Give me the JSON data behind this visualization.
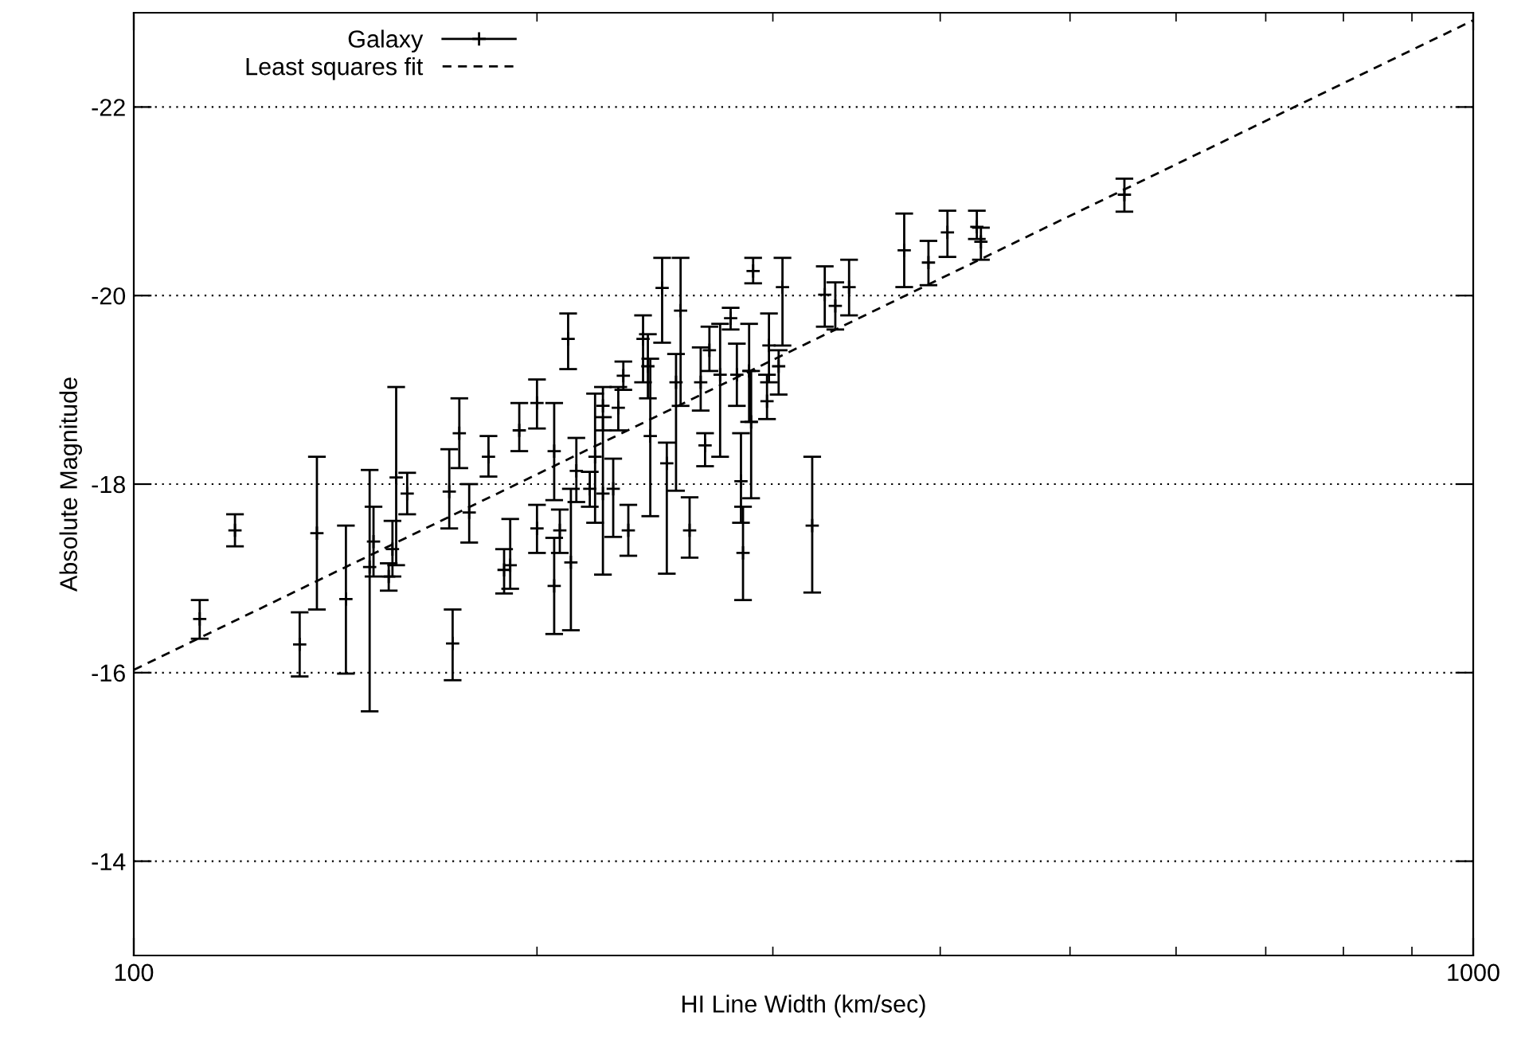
{
  "chart_data": {
    "type": "scatter",
    "xlabel": "HI Line Width (km/sec)",
    "ylabel": "Absolute Magnitude",
    "log": "x",
    "xlim": [
      100,
      1000
    ],
    "xticks": [
      100,
      1000
    ],
    "ylim": [
      -13,
      -23
    ],
    "yticks": [
      -14,
      -16,
      -18,
      -20,
      -22
    ],
    "grid": "y",
    "legend": "top left",
    "marker": "cross",
    "series": [
      {
        "name": "Galaxy",
        "color": "#000000",
        "x": [
          112,
          119,
          133,
          137,
          144,
          150,
          151,
          155,
          156,
          157,
          160,
          172,
          173,
          175,
          178,
          184,
          189,
          191,
          194,
          200,
          200,
          206,
          206,
          208,
          211,
          212,
          214,
          219,
          221,
          224,
          224,
          228,
          230,
          232,
          234,
          240,
          242,
          243,
          248,
          250,
          254,
          256,
          260,
          265,
          267,
          269,
          274,
          279,
          282,
          284,
          285,
          288,
          289,
          290,
          298,
          297,
          303,
          305,
          321,
          328,
          334,
          342,
          376,
          392,
          405,
          426,
          429,
          549
        ],
        "values": [
          -16.57,
          -17.51,
          -16.3,
          -17.48,
          -16.78,
          -17.12,
          -17.39,
          -17.02,
          -17.31,
          -18.07,
          -17.9,
          -17.92,
          -16.31,
          -18.54,
          -17.7,
          -18.29,
          -17.09,
          -17.14,
          -18.57,
          -18.86,
          -17.53,
          -18.35,
          -16.92,
          -17.51,
          -19.54,
          -17.17,
          -18.14,
          -17.95,
          -18.29,
          -18.83,
          -17.9,
          -17.95,
          -18.81,
          -19.15,
          -17.51,
          -19.54,
          -19.25,
          -18.51,
          -20.08,
          -18.22,
          -19.08,
          -19.84,
          -17.51,
          -19.08,
          -18.41,
          -19.42,
          -19.16,
          -19.76,
          -19.16,
          -18.03,
          -17.27,
          -19.2,
          -18.66,
          -20.26,
          -19.47,
          -18.88,
          -19.25,
          -20.09,
          -17.56,
          -20.01,
          -19.89,
          -20.09,
          -20.48,
          -20.35,
          -20.67,
          -20.73,
          -20.57,
          -21.07
        ],
        "errors": [
          [
            -16.77,
            -16.36
          ],
          [
            -17.68,
            -17.34
          ],
          [
            -16.64,
            -15.96
          ],
          [
            -18.29,
            -16.67
          ],
          [
            -17.56,
            -15.99
          ],
          [
            -18.15,
            -15.59
          ],
          [
            -17.76,
            -17.02
          ],
          [
            -17.16,
            -16.87
          ],
          [
            -17.61,
            -17.02
          ],
          [
            -19.03,
            -17.14
          ],
          [
            -18.12,
            -17.68
          ],
          [
            -18.37,
            -17.53
          ],
          [
            -16.67,
            -15.92
          ],
          [
            -18.91,
            -18.17
          ],
          [
            -18.0,
            -17.38
          ],
          [
            -18.51,
            -18.08
          ],
          [
            -17.31,
            -16.84
          ],
          [
            -17.63,
            -16.89
          ],
          [
            -18.86,
            -18.35
          ],
          [
            -19.11,
            -18.59
          ],
          [
            -17.78,
            -17.27
          ],
          [
            -18.86,
            -17.83
          ],
          [
            -17.43,
            -16.41
          ],
          [
            -17.73,
            -17.27
          ],
          [
            -19.81,
            -19.22
          ],
          [
            -17.95,
            -16.45
          ],
          [
            -18.49,
            -17.81
          ],
          [
            -18.13,
            -17.76
          ],
          [
            -18.96,
            -17.59
          ],
          [
            -19.03,
            -18.57
          ],
          [
            -18.71,
            -17.04
          ],
          [
            -18.27,
            -17.44
          ],
          [
            -19.03,
            -18.57
          ],
          [
            -19.3,
            -19.0
          ],
          [
            -17.78,
            -17.24
          ],
          [
            -19.79,
            -19.08
          ],
          [
            -19.59,
            -18.91
          ],
          [
            -19.33,
            -17.66
          ],
          [
            -20.4,
            -19.5
          ],
          [
            -18.44,
            -17.05
          ],
          [
            -19.38,
            -17.93
          ],
          [
            -20.4,
            -18.83
          ],
          [
            -17.86,
            -17.22
          ],
          [
            -19.45,
            -18.78
          ],
          [
            -18.54,
            -18.19
          ],
          [
            -19.67,
            -19.2
          ],
          [
            -19.7,
            -18.29
          ],
          [
            -19.87,
            -19.64
          ],
          [
            -19.49,
            -18.83
          ],
          [
            -18.54,
            -17.59
          ],
          [
            -17.76,
            -16.77
          ],
          [
            -19.7,
            -18.66
          ],
          [
            -19.2,
            -17.85
          ],
          [
            -20.4,
            -20.13
          ],
          [
            -19.81,
            -19.08
          ],
          [
            -19.16,
            -18.69
          ],
          [
            -19.42,
            -18.95
          ],
          [
            -20.4,
            -19.47
          ],
          [
            -18.29,
            -16.85
          ],
          [
            -20.31,
            -19.67
          ],
          [
            -20.14,
            -19.64
          ],
          [
            -20.38,
            -19.79
          ],
          [
            -20.87,
            -20.09
          ],
          [
            -20.58,
            -20.11
          ],
          [
            -20.9,
            -20.41
          ],
          [
            -20.9,
            -20.6
          ],
          [
            -20.72,
            -20.38
          ],
          [
            -21.24,
            -20.89
          ]
        ]
      },
      {
        "name": "Least squares fit",
        "type": "line",
        "color": "#000000",
        "line_style": "dashed",
        "marker": "none",
        "x": [
          100,
          1000
        ],
        "values": [
          -16.03,
          -22.92
        ]
      }
    ]
  }
}
